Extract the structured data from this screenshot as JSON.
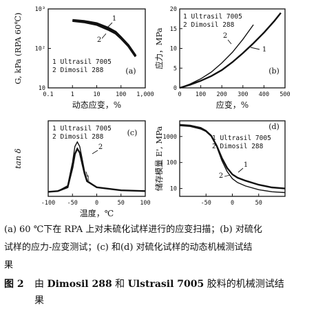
{
  "chart_data": [
    {
      "type": "line",
      "panel": "(a)",
      "xlabel": "动态应变，%",
      "ylabel": "G, kPa (RPA 60℃)",
      "xscale": "log",
      "yscale": "log",
      "xlim": [
        0.1,
        1000
      ],
      "ylim": [
        10,
        1000
      ],
      "x_ticks": [
        "0.1",
        "1",
        "10",
        "100",
        "1,000"
      ],
      "y_ticks": [
        "10",
        "10²",
        "10³"
      ],
      "legend": [
        "1 Ultrasil 7005",
        "2 Dimosil 288"
      ],
      "legend_position": "bottom-left",
      "series": [
        {
          "name": "1 Ultrasil 7005",
          "label": "1",
          "x": [
            1,
            3,
            10,
            30,
            60,
            100,
            200,
            400
          ],
          "y": [
            520,
            490,
            430,
            330,
            260,
            190,
            120,
            65
          ]
        },
        {
          "name": "2 Dimosil 288",
          "label": "2",
          "x": [
            1,
            3,
            10,
            30,
            60,
            100,
            200,
            400
          ],
          "y": [
            500,
            465,
            400,
            300,
            240,
            180,
            115,
            62
          ]
        }
      ]
    },
    {
      "type": "line",
      "panel": "(b)",
      "xlabel": "应变，%",
      "ylabel": "应力，MPa",
      "xlim": [
        0,
        500
      ],
      "ylim": [
        0,
        20
      ],
      "x_ticks": [
        "0",
        "100",
        "200",
        "300",
        "400",
        "500"
      ],
      "y_ticks": [
        "0",
        "5",
        "10",
        "15",
        "20"
      ],
      "legend": [
        "1 Ultrasil 7005",
        "2 Dimosil 288"
      ],
      "legend_position": "top-left",
      "series": [
        {
          "name": "1 Ultrasil 7005",
          "label": "1",
          "x": [
            0,
            50,
            100,
            150,
            200,
            250,
            300,
            350,
            400,
            450,
            480
          ],
          "y": [
            0,
            0.8,
            1.8,
            3.0,
            4.5,
            6.5,
            8.8,
            11.3,
            14.0,
            17.0,
            19.0
          ]
        },
        {
          "name": "2 Dimosil 288",
          "label": "2",
          "x": [
            0,
            50,
            100,
            150,
            200,
            250,
            300,
            350
          ],
          "y": [
            0,
            1.0,
            2.3,
            4.0,
            6.3,
            9.0,
            12.3,
            16.0
          ]
        }
      ]
    },
    {
      "type": "line",
      "panel": "(c)",
      "xlabel": "温度，℃",
      "ylabel": "tan δ",
      "xlim": [
        -100,
        100
      ],
      "ylim": [
        0,
        1.0
      ],
      "x_ticks": [
        "-100",
        "-50",
        "0",
        "50",
        "100"
      ],
      "y_ticks": [],
      "legend": [
        "1 Ultrasil 7005",
        "2 Dimosil 288"
      ],
      "legend_position": "top-left",
      "series": [
        {
          "name": "1 Ultrasil 7005",
          "label": "1",
          "x": [
            -100,
            -80,
            -60,
            -50,
            -45,
            -40,
            -35,
            -30,
            -25,
            -20,
            0,
            50,
            100
          ],
          "y": [
            0.06,
            0.07,
            0.12,
            0.38,
            0.56,
            0.63,
            0.58,
            0.44,
            0.3,
            0.2,
            0.12,
            0.08,
            0.07
          ]
        },
        {
          "name": "2 Dimosil 288",
          "label": "2",
          "x": [
            -100,
            -80,
            -60,
            -50,
            -45,
            -40,
            -35,
            -30,
            -25,
            -20,
            0,
            50,
            100
          ],
          "y": [
            0.06,
            0.07,
            0.14,
            0.45,
            0.66,
            0.72,
            0.66,
            0.5,
            0.33,
            0.21,
            0.12,
            0.08,
            0.07
          ]
        }
      ]
    },
    {
      "type": "line",
      "panel": "(d)",
      "xlabel": "",
      "ylabel": "储存模量 E', MPa",
      "yscale": "log",
      "xlim": [
        -100,
        100
      ],
      "ylim": [
        5,
        4000
      ],
      "x_ticks": [
        "-50",
        "0",
        "50"
      ],
      "y_ticks": [
        "10",
        "100",
        "1000"
      ],
      "legend": [
        "1 Ultrasil 7005",
        "2 Dimosil 288"
      ],
      "legend_position": "right",
      "series": [
        {
          "name": "1 Ultrasil 7005",
          "label": "1",
          "x": [
            -100,
            -80,
            -60,
            -50,
            -40,
            -30,
            -20,
            -10,
            0,
            10,
            25,
            50,
            75,
            100
          ],
          "y": [
            2700,
            2500,
            2000,
            1600,
            1050,
            450,
            150,
            62,
            35,
            26,
            20,
            14,
            11,
            10
          ]
        },
        {
          "name": "2 Dimosil 288",
          "label": "2",
          "x": [
            -100,
            -80,
            -60,
            -50,
            -40,
            -30,
            -20,
            -10,
            0,
            10,
            25,
            50,
            75,
            100
          ],
          "y": [
            2900,
            2700,
            2200,
            1700,
            1100,
            420,
            120,
            45,
            24,
            17,
            12.5,
            9,
            7.5,
            7
          ]
        }
      ]
    }
  ],
  "caption": {
    "line1": "(a) 60 ℃下在 RPA 上对未硫化试样进行的应变扫描；(b) 对硫化",
    "line2": "试样的应力-应变测试；(c) 和(d) 对硫化试样的动态机械测试结",
    "line3": "果",
    "fig_num": "图 2",
    "title_a": "由 ",
    "title_b": "Dimosil 288",
    "title_c": " 和 ",
    "title_d": "Ulstrasil 7005",
    "title_e": " 胶料的机械测试结",
    "title_f": "果"
  }
}
